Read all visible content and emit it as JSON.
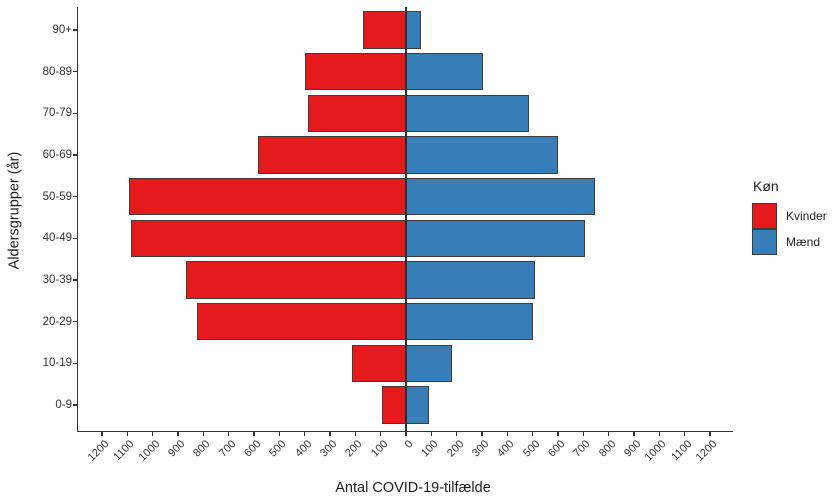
{
  "chart_data": {
    "type": "bar",
    "variant": "population-pyramid",
    "xlabel": "Antal COVID-19-tilfælde",
    "ylabel": "Aldersgrupper (år)",
    "categories_top_to_bottom": [
      "90+",
      "80-89",
      "70-79",
      "60-69",
      "50-59",
      "40-49",
      "30-39",
      "20-29",
      "10-19",
      "0-9"
    ],
    "series": [
      {
        "name": "Kvinder",
        "side": "left",
        "color": "#e41a1c",
        "values": [
          170,
          400,
          385,
          585,
          1095,
          1085,
          870,
          825,
          215,
          95
        ]
      },
      {
        "name": "Mænd",
        "side": "right",
        "color": "#377eb8",
        "values": [
          60,
          305,
          485,
          600,
          745,
          705,
          510,
          500,
          180,
          90
        ]
      }
    ],
    "xlim": [
      -1200,
      1200
    ],
    "x_tick_step": 100,
    "x_tick_labels_shown_as_absolute": [
      "1200",
      "1100",
      "1000",
      "900",
      "800",
      "700",
      "600",
      "500",
      "400",
      "300",
      "200",
      "100",
      "0",
      "100",
      "200",
      "300",
      "400",
      "500",
      "600",
      "700",
      "800",
      "900",
      "1000",
      "1100",
      "1200"
    ],
    "grid": false,
    "axis_color": "#333333",
    "bar_border_color": "#3d3d3d",
    "legend": {
      "title": "Køn",
      "position": "right",
      "entries": [
        {
          "label": "Kvinder",
          "color": "#e41a1c"
        },
        {
          "label": "Mænd",
          "color": "#377eb8"
        }
      ]
    }
  }
}
